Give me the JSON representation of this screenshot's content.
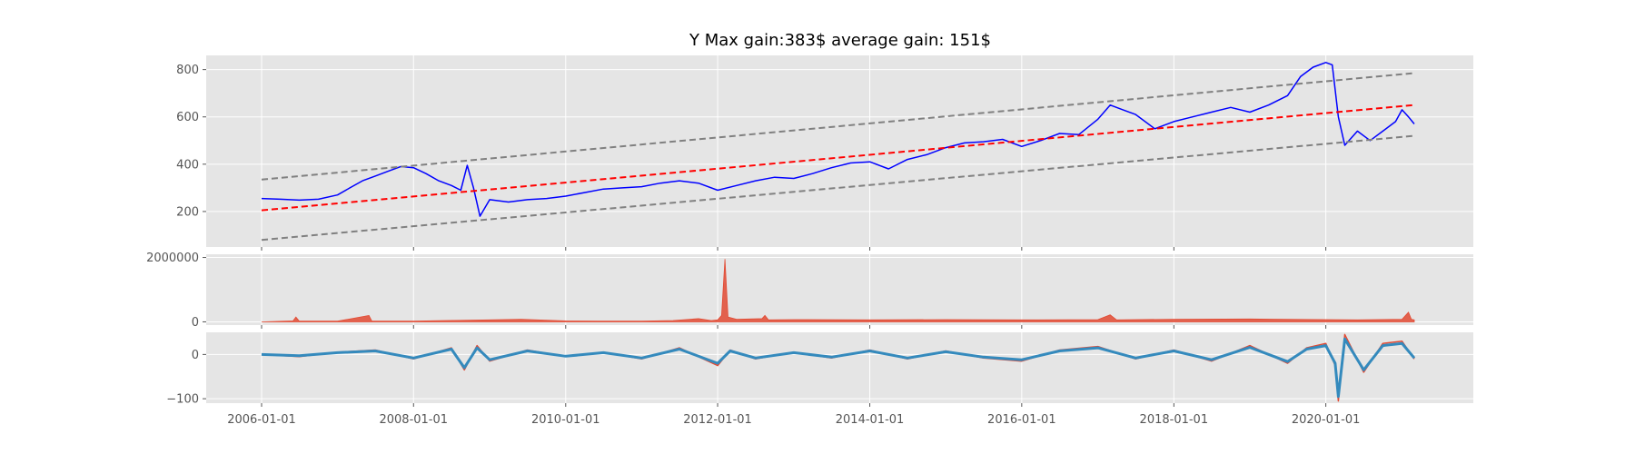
{
  "chart_data": [
    {
      "type": "line",
      "title": "Y Max gain:383$  average gain: 151$",
      "xlabel": "",
      "ylabel": "",
      "grid": true,
      "x_ticks": [
        "2006-01-01",
        "2008-01-01",
        "2010-01-01",
        "2012-01-01",
        "2014-01-01",
        "2016-01-01",
        "2018-01-01",
        "2020-01-01"
      ],
      "ylim": [
        50,
        860
      ],
      "y_ticks": [
        200,
        400,
        600,
        800
      ],
      "series": [
        {
          "role": "price",
          "color": "#0000ff",
          "style": "solid",
          "points": [
            [
              "2006-01-01",
              255
            ],
            [
              "2006-04-01",
              252
            ],
            [
              "2006-07-01",
              248
            ],
            [
              "2006-10-01",
              252
            ],
            [
              "2007-01-01",
              270
            ],
            [
              "2007-03-01",
              300
            ],
            [
              "2007-05-01",
              330
            ],
            [
              "2007-07-01",
              350
            ],
            [
              "2007-09-01",
              370
            ],
            [
              "2007-11-01",
              390
            ],
            [
              "2008-01-01",
              385
            ],
            [
              "2008-03-01",
              360
            ],
            [
              "2008-05-01",
              330
            ],
            [
              "2008-07-01",
              310
            ],
            [
              "2008-08-15",
              290
            ],
            [
              "2008-09-15",
              395
            ],
            [
              "2008-10-15",
              300
            ],
            [
              "2008-11-15",
              180
            ],
            [
              "2009-01-01",
              250
            ],
            [
              "2009-04-01",
              240
            ],
            [
              "2009-07-01",
              250
            ],
            [
              "2009-10-01",
              255
            ],
            [
              "2010-01-01",
              265
            ],
            [
              "2010-04-01",
              280
            ],
            [
              "2010-07-01",
              295
            ],
            [
              "2010-10-01",
              300
            ],
            [
              "2011-01-01",
              305
            ],
            [
              "2011-04-01",
              320
            ],
            [
              "2011-07-01",
              330
            ],
            [
              "2011-10-01",
              320
            ],
            [
              "2012-01-01",
              290
            ],
            [
              "2012-04-01",
              310
            ],
            [
              "2012-07-01",
              330
            ],
            [
              "2012-10-01",
              345
            ],
            [
              "2013-01-01",
              340
            ],
            [
              "2013-04-01",
              360
            ],
            [
              "2013-07-01",
              385
            ],
            [
              "2013-10-01",
              405
            ],
            [
              "2014-01-01",
              410
            ],
            [
              "2014-04-01",
              380
            ],
            [
              "2014-07-01",
              420
            ],
            [
              "2014-10-01",
              440
            ],
            [
              "2015-01-01",
              470
            ],
            [
              "2015-04-01",
              490
            ],
            [
              "2015-07-01",
              495
            ],
            [
              "2015-10-01",
              505
            ],
            [
              "2016-01-01",
              475
            ],
            [
              "2016-04-01",
              500
            ],
            [
              "2016-07-01",
              530
            ],
            [
              "2016-10-01",
              525
            ],
            [
              "2017-01-01",
              590
            ],
            [
              "2017-03-01",
              650
            ],
            [
              "2017-05-01",
              630
            ],
            [
              "2017-07-01",
              610
            ],
            [
              "2017-10-01",
              550
            ],
            [
              "2018-01-01",
              580
            ],
            [
              "2018-04-01",
              600
            ],
            [
              "2018-07-01",
              620
            ],
            [
              "2018-10-01",
              640
            ],
            [
              "2019-01-01",
              620
            ],
            [
              "2019-04-01",
              650
            ],
            [
              "2019-07-01",
              690
            ],
            [
              "2019-09-01",
              770
            ],
            [
              "2019-11-01",
              810
            ],
            [
              "2020-01-01",
              830
            ],
            [
              "2020-02-01",
              820
            ],
            [
              "2020-03-01",
              600
            ],
            [
              "2020-04-01",
              480
            ],
            [
              "2020-06-01",
              540
            ],
            [
              "2020-08-01",
              500
            ],
            [
              "2020-10-01",
              540
            ],
            [
              "2020-12-01",
              580
            ],
            [
              "2021-01-01",
              630
            ],
            [
              "2021-02-01",
              600
            ],
            [
              "2021-03-01",
              570
            ]
          ]
        },
        {
          "role": "trend",
          "color": "#ff0000",
          "style": "dashed",
          "points": [
            [
              "2006-01-01",
              205
            ],
            [
              "2021-03-01",
              650
            ]
          ]
        },
        {
          "role": "upper-band",
          "color": "#808080",
          "style": "dashed",
          "points": [
            [
              "2006-01-01",
              335
            ],
            [
              "2021-03-01",
              785
            ]
          ]
        },
        {
          "role": "lower-band",
          "color": "#808080",
          "style": "dashed",
          "points": [
            [
              "2006-01-01",
              80
            ],
            [
              "2021-03-01",
              520
            ]
          ]
        }
      ]
    },
    {
      "type": "area",
      "title": "",
      "xlabel": "",
      "ylabel": "",
      "grid": true,
      "ylim": [
        -100000,
        2100000
      ],
      "y_ticks": [
        0,
        2000000
      ],
      "series": [
        {
          "role": "volume",
          "color": "#e24a33",
          "points": [
            [
              "2006-01-01",
              0
            ],
            [
              "2006-06-01",
              30000
            ],
            [
              "2006-06-15",
              150000
            ],
            [
              "2006-07-01",
              20000
            ],
            [
              "2007-01-01",
              20000
            ],
            [
              "2007-06-01",
              200000
            ],
            [
              "2007-06-15",
              20000
            ],
            [
              "2008-01-01",
              20000
            ],
            [
              "2008-06-01",
              40000
            ],
            [
              "2009-01-01",
              60000
            ],
            [
              "2009-06-01",
              80000
            ],
            [
              "2010-01-01",
              30000
            ],
            [
              "2010-06-01",
              20000
            ],
            [
              "2011-01-01",
              25000
            ],
            [
              "2011-06-01",
              40000
            ],
            [
              "2011-10-01",
              100000
            ],
            [
              "2011-12-01",
              40000
            ],
            [
              "2012-01-01",
              60000
            ],
            [
              "2012-01-20",
              200000
            ],
            [
              "2012-02-05",
              1950000
            ],
            [
              "2012-02-20",
              150000
            ],
            [
              "2012-04-01",
              80000
            ],
            [
              "2012-08-01",
              100000
            ],
            [
              "2012-08-15",
              200000
            ],
            [
              "2012-09-01",
              60000
            ],
            [
              "2013-01-01",
              70000
            ],
            [
              "2014-01-01",
              60000
            ],
            [
              "2015-01-01",
              70000
            ],
            [
              "2016-01-01",
              60000
            ],
            [
              "2017-01-01",
              70000
            ],
            [
              "2017-03-01",
              220000
            ],
            [
              "2017-04-01",
              60000
            ],
            [
              "2018-01-01",
              80000
            ],
            [
              "2019-01-01",
              90000
            ],
            [
              "2020-01-01",
              70000
            ],
            [
              "2020-06-01",
              60000
            ],
            [
              "2021-01-01",
              80000
            ],
            [
              "2021-02-01",
              300000
            ],
            [
              "2021-02-15",
              80000
            ],
            [
              "2021-03-01",
              60000
            ]
          ]
        }
      ]
    },
    {
      "type": "line",
      "title": "",
      "xlabel": "",
      "ylabel": "",
      "grid": true,
      "ylim": [
        -110,
        50
      ],
      "y_ticks": [
        -100,
        0
      ],
      "x_ticks": [
        "2006-01-01",
        "2008-01-01",
        "2010-01-01",
        "2012-01-01",
        "2014-01-01",
        "2016-01-01",
        "2018-01-01",
        "2020-01-01"
      ],
      "series": [
        {
          "role": "oscillator-fast",
          "color": "#e24a33",
          "points": [
            [
              "2006-01-01",
              0
            ],
            [
              "2006-07-01",
              -5
            ],
            [
              "2007-01-01",
              5
            ],
            [
              "2007-07-01",
              10
            ],
            [
              "2008-01-01",
              -10
            ],
            [
              "2008-07-01",
              15
            ],
            [
              "2008-09-01",
              -35
            ],
            [
              "2008-11-01",
              20
            ],
            [
              "2009-01-01",
              -15
            ],
            [
              "2009-07-01",
              10
            ],
            [
              "2010-01-01",
              -5
            ],
            [
              "2010-07-01",
              5
            ],
            [
              "2011-01-01",
              -10
            ],
            [
              "2011-07-01",
              15
            ],
            [
              "2012-01-01",
              -25
            ],
            [
              "2012-03-01",
              10
            ],
            [
              "2012-07-01",
              -10
            ],
            [
              "2013-01-01",
              5
            ],
            [
              "2013-07-01",
              -8
            ],
            [
              "2014-01-01",
              10
            ],
            [
              "2014-07-01",
              -10
            ],
            [
              "2015-01-01",
              8
            ],
            [
              "2015-07-01",
              -8
            ],
            [
              "2016-01-01",
              -15
            ],
            [
              "2016-07-01",
              10
            ],
            [
              "2017-01-01",
              18
            ],
            [
              "2017-07-01",
              -10
            ],
            [
              "2018-01-01",
              10
            ],
            [
              "2018-07-01",
              -15
            ],
            [
              "2019-01-01",
              20
            ],
            [
              "2019-07-01",
              -20
            ],
            [
              "2019-10-01",
              15
            ],
            [
              "2020-01-01",
              25
            ],
            [
              "2020-02-15",
              -25
            ],
            [
              "2020-03-01",
              -105
            ],
            [
              "2020-04-01",
              45
            ],
            [
              "2020-07-01",
              -40
            ],
            [
              "2020-10-01",
              25
            ],
            [
              "2021-01-01",
              30
            ],
            [
              "2021-03-01",
              -10
            ]
          ]
        },
        {
          "role": "oscillator-slow",
          "color": "#348abd",
          "points": [
            [
              "2006-01-01",
              0
            ],
            [
              "2006-07-01",
              -3
            ],
            [
              "2007-01-01",
              4
            ],
            [
              "2007-07-01",
              8
            ],
            [
              "2008-01-01",
              -8
            ],
            [
              "2008-07-01",
              12
            ],
            [
              "2008-09-01",
              -30
            ],
            [
              "2008-11-01",
              15
            ],
            [
              "2009-01-01",
              -12
            ],
            [
              "2009-07-01",
              8
            ],
            [
              "2010-01-01",
              -4
            ],
            [
              "2010-07-01",
              4
            ],
            [
              "2011-01-01",
              -8
            ],
            [
              "2011-07-01",
              12
            ],
            [
              "2012-01-01",
              -20
            ],
            [
              "2012-03-01",
              8
            ],
            [
              "2012-07-01",
              -8
            ],
            [
              "2013-01-01",
              4
            ],
            [
              "2013-07-01",
              -6
            ],
            [
              "2014-01-01",
              8
            ],
            [
              "2014-07-01",
              -8
            ],
            [
              "2015-01-01",
              6
            ],
            [
              "2015-07-01",
              -6
            ],
            [
              "2016-01-01",
              -12
            ],
            [
              "2016-07-01",
              8
            ],
            [
              "2017-01-01",
              15
            ],
            [
              "2017-07-01",
              -8
            ],
            [
              "2018-01-01",
              8
            ],
            [
              "2018-07-01",
              -12
            ],
            [
              "2019-01-01",
              16
            ],
            [
              "2019-07-01",
              -16
            ],
            [
              "2019-10-01",
              12
            ],
            [
              "2020-01-01",
              20
            ],
            [
              "2020-02-15",
              -20
            ],
            [
              "2020-03-01",
              -95
            ],
            [
              "2020-04-01",
              35
            ],
            [
              "2020-07-01",
              -35
            ],
            [
              "2020-10-01",
              20
            ],
            [
              "2021-01-01",
              25
            ],
            [
              "2021-03-01",
              -8
            ]
          ]
        }
      ]
    }
  ]
}
